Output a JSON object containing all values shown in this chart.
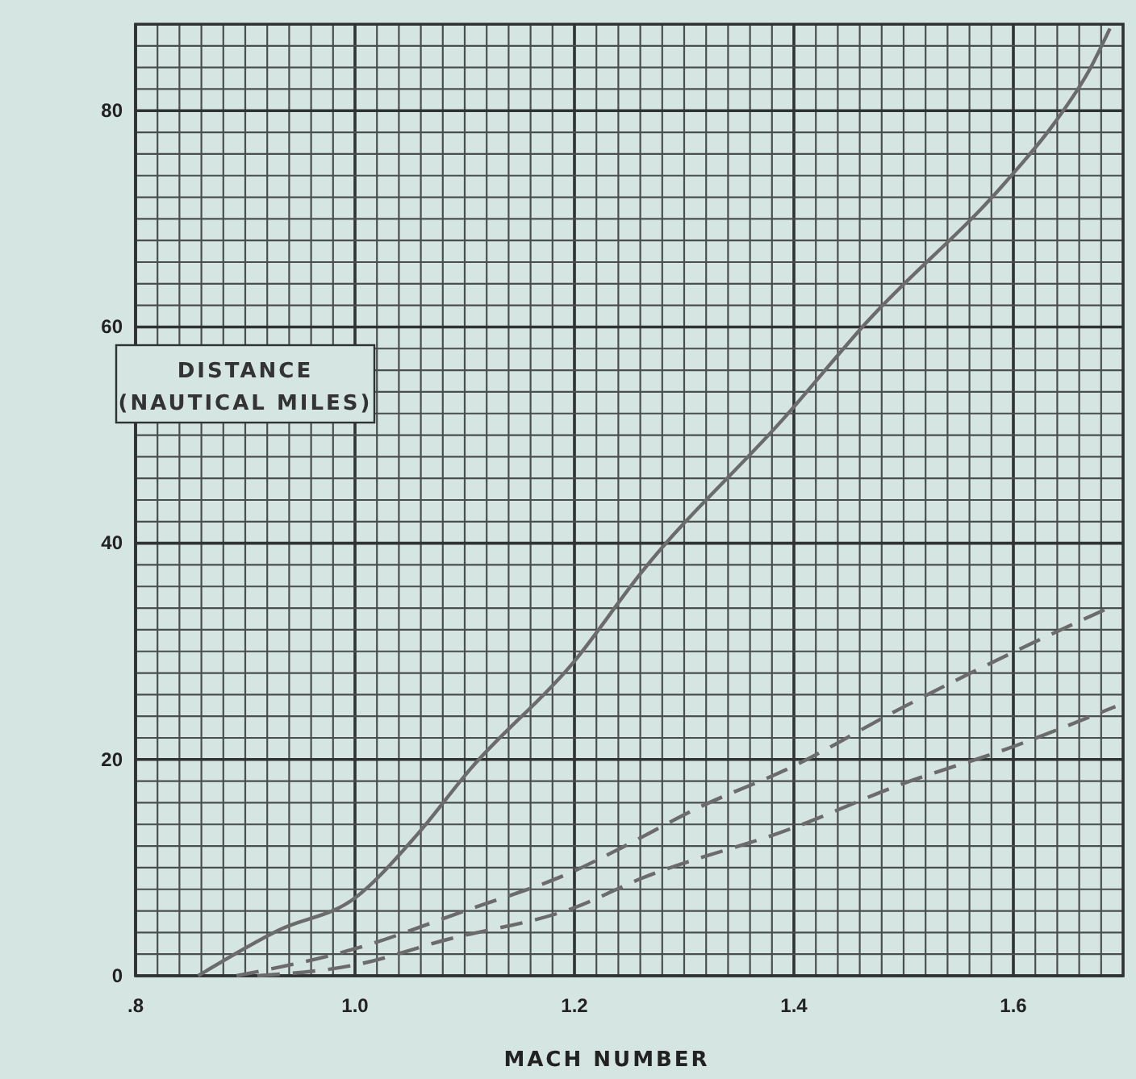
{
  "chart_data": {
    "type": "line",
    "xlabel": "MACH NUMBER",
    "ylabel": "DISTANCE (NAUTICAL MILES)",
    "xlim": [
      0.8,
      1.7
    ],
    "ylim": [
      0,
      88
    ],
    "xticks": [
      {
        "value": 0.8,
        "label": ".8"
      },
      {
        "value": 1.0,
        "label": "1.0"
      },
      {
        "value": 1.2,
        "label": "1.2"
      },
      {
        "value": 1.4,
        "label": "1.4"
      },
      {
        "value": 1.6,
        "label": "1.6"
      }
    ],
    "yticks": [
      0,
      20,
      40,
      60,
      80
    ],
    "grid": true,
    "marker": "none",
    "series": [
      {
        "color": "#6b6b6b",
        "line_style": "solid",
        "x": [
          0.857,
          0.93,
          1.0,
          1.057,
          1.105,
          1.2,
          1.261,
          1.393,
          1.466,
          1.593,
          1.637,
          1.67,
          1.688
        ],
        "values": [
          0,
          4.2,
          7.2,
          13.1,
          19.1,
          29.1,
          37.3,
          51.8,
          60.4,
          73.4,
          78.8,
          83.9,
          87.6
        ]
      },
      {
        "color": "#6b6b6b",
        "line_style": "dashed",
        "x": [
          0.892,
          1.0,
          1.1,
          1.2,
          1.244,
          1.31,
          1.4,
          1.495,
          1.616,
          1.693
        ],
        "values": [
          0,
          2.5,
          6.0,
          9.7,
          11.9,
          15.4,
          19.4,
          24.6,
          30.7,
          34.3
        ]
      },
      {
        "color": "#6b6b6b",
        "line_style": "dashed",
        "x": [
          0.911,
          1.0,
          1.082,
          1.2,
          1.261,
          1.4,
          1.495,
          1.6,
          1.693
        ],
        "values": [
          0,
          1.0,
          3.3,
          6.3,
          9.0,
          13.7,
          17.6,
          21.2,
          24.9
        ]
      }
    ]
  }
}
